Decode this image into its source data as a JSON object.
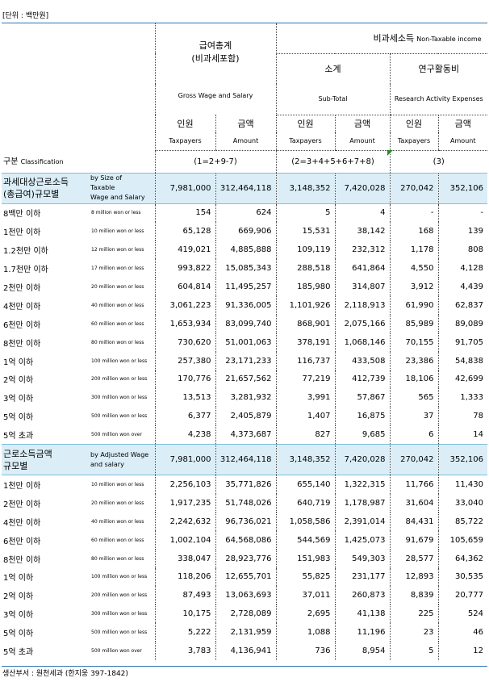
{
  "unit_label": "[단위 : 백만원]",
  "source_label": "생산부서 : 원천세과 (한지웅 397-1842)",
  "header": {
    "gross_ko_1": "급여총계",
    "gross_ko_2": "(비과세포함)",
    "gross_en": "Gross Wage and Salary",
    "nontax_ko": "비과세소득",
    "nontax_en": "Non-Taxable income",
    "subtotal_ko": "소계",
    "subtotal_en": "Sub-Total",
    "research_ko": "연구활동비",
    "research_en": "Research Activity Expenses",
    "taxpayers_ko": "인원",
    "taxpayers_en": "Taxpayers",
    "amount_ko": "금액",
    "amount_en": "Amount",
    "class_ko": "구분",
    "class_en": "Classification",
    "formula_gross": "(1=2+9-7)",
    "formula_sub": "(2=3+4+5+6+7+8)",
    "formula_research": "(3)"
  },
  "sections": [
    {
      "label_ko_1": "과세대상근로소득",
      "label_ko_2": "(총급여)규모별",
      "label_en_1": "by Size of",
      "label_en_2": "Taxable",
      "label_en_3": "Wage and Salary",
      "total": [
        "7,981,000",
        "312,464,118",
        "3,148,352",
        "7,420,028",
        "270,042",
        "352,106"
      ],
      "rows": [
        {
          "ko": "8백만 이하",
          "en": "8  million won or less",
          "v": [
            "154",
            "624",
            "5",
            "4",
            "-",
            "-"
          ]
        },
        {
          "ko": "1천만 이하",
          "en": "10 million won or less",
          "v": [
            "65,128",
            "669,906",
            "15,531",
            "38,142",
            "168",
            "139"
          ]
        },
        {
          "ko": "1.2천만 이하",
          "en": "12 million won or less",
          "v": [
            "419,021",
            "4,885,888",
            "109,119",
            "232,312",
            "1,178",
            "808"
          ]
        },
        {
          "ko": "1.7천만 이하",
          "en": "17 million won or less",
          "v": [
            "993,822",
            "15,085,343",
            "288,518",
            "641,864",
            "4,550",
            "4,128"
          ]
        },
        {
          "ko": "2천만 이하",
          "en": "20 million won or less",
          "v": [
            "604,814",
            "11,495,257",
            "185,980",
            "314,807",
            "3,912",
            "4,439"
          ]
        },
        {
          "ko": "4천만 이하",
          "en": "40 million won or less",
          "v": [
            "3,061,223",
            "91,336,005",
            "1,101,926",
            "2,118,913",
            "61,990",
            "62,837"
          ]
        },
        {
          "ko": "6천만 이하",
          "en": "60 million won or less",
          "v": [
            "1,653,934",
            "83,099,740",
            "868,901",
            "2,075,166",
            "85,989",
            "89,089"
          ]
        },
        {
          "ko": "8천만 이하",
          "en": "80 million won or less",
          "v": [
            "730,620",
            "51,001,063",
            "378,191",
            "1,068,146",
            "70,155",
            "91,705"
          ]
        },
        {
          "ko": "1억 이하",
          "en": "100 million won or less",
          "v": [
            "257,380",
            "23,171,233",
            "116,737",
            "433,508",
            "23,386",
            "54,838"
          ]
        },
        {
          "ko": "2억 이하",
          "en": "200 million won or less",
          "v": [
            "170,776",
            "21,657,562",
            "77,219",
            "412,739",
            "18,106",
            "42,699"
          ]
        },
        {
          "ko": "3억 이하",
          "en": "300 million won or less",
          "v": [
            "13,513",
            "3,281,932",
            "3,991",
            "57,867",
            "565",
            "1,333"
          ]
        },
        {
          "ko": "5억 이하",
          "en": "500 million won or less",
          "v": [
            "6,377",
            "2,405,879",
            "1,407",
            "16,875",
            "37",
            "78"
          ]
        },
        {
          "ko": "5억 초과",
          "en": "500 million won over",
          "v": [
            "4,238",
            "4,373,687",
            "827",
            "9,685",
            "6",
            "14"
          ]
        }
      ]
    },
    {
      "label_ko_1": "근로소득금액",
      "label_ko_2": "규모별",
      "label_en_1": "by Adjusted Wage",
      "label_en_2": "and salary",
      "label_en_3": "",
      "total": [
        "7,981,000",
        "312,464,118",
        "3,148,352",
        "7,420,028",
        "270,042",
        "352,106"
      ],
      "rows": [
        {
          "ko": "1천만 이하",
          "en": "10 million won or less",
          "v": [
            "2,256,103",
            "35,771,826",
            "655,140",
            "1,322,315",
            "11,766",
            "11,430"
          ]
        },
        {
          "ko": "2천만 이하",
          "en": "20 million won or less",
          "v": [
            "1,917,235",
            "51,748,026",
            "640,719",
            "1,178,987",
            "31,604",
            "33,040"
          ]
        },
        {
          "ko": "4천만 이하",
          "en": "40 million won or less",
          "v": [
            "2,242,632",
            "96,736,021",
            "1,058,586",
            "2,391,014",
            "84,431",
            "85,722"
          ]
        },
        {
          "ko": "6천만 이하",
          "en": "60 million won or less",
          "v": [
            "1,002,104",
            "64,568,086",
            "544,569",
            "1,425,073",
            "91,679",
            "105,659"
          ]
        },
        {
          "ko": "8천만 이하",
          "en": "80 million won or less",
          "v": [
            "338,047",
            "28,923,776",
            "151,983",
            "549,303",
            "28,577",
            "64,362"
          ]
        },
        {
          "ko": "1억 이하",
          "en": "100 million won or less",
          "v": [
            "118,206",
            "12,655,701",
            "55,825",
            "231,177",
            "12,893",
            "30,535"
          ]
        },
        {
          "ko": "2억 이하",
          "en": "200 million won or less",
          "v": [
            "87,493",
            "13,063,693",
            "37,011",
            "260,873",
            "8,839",
            "20,777"
          ]
        },
        {
          "ko": "3억 이하",
          "en": "300 million won or less",
          "v": [
            "10,175",
            "2,728,089",
            "2,695",
            "41,138",
            "225",
            "524"
          ]
        },
        {
          "ko": "5억 이하",
          "en": "500 million won or less",
          "v": [
            "5,222",
            "2,131,959",
            "1,088",
            "11,196",
            "23",
            "46"
          ]
        },
        {
          "ko": "5억 초과",
          "en": "500 million won over",
          "v": [
            "3,783",
            "4,136,941",
            "736",
            "8,954",
            "5",
            "12"
          ]
        }
      ]
    }
  ]
}
